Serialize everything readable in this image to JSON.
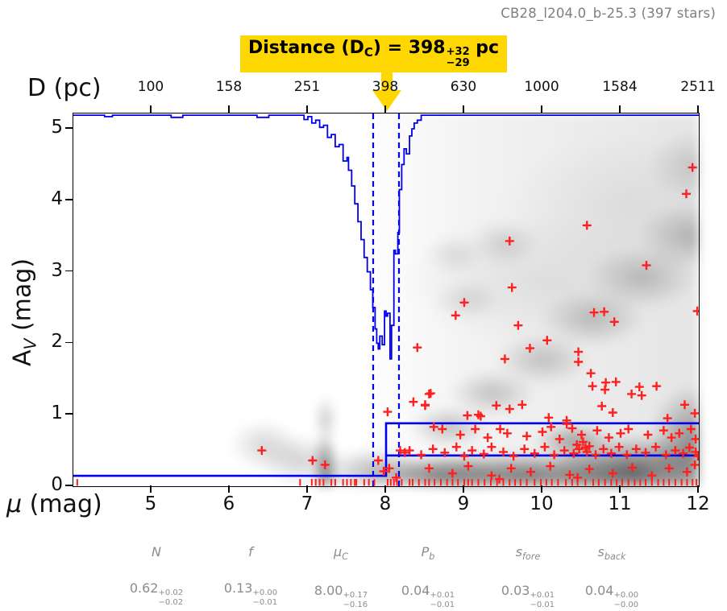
{
  "window": {
    "title": "CB28_l204.0_b-25.3 (397 stars)"
  },
  "annotation": {
    "prefix": "Distance (D",
    "sub": "C",
    "mid": ") = ",
    "value": "398",
    "err_plus": "+32",
    "err_minus": "−29",
    "suffix": " pc",
    "bg_color": "#ffd700"
  },
  "axes": {
    "top": {
      "label": "D (pc)"
    },
    "bottom": {
      "symbol": "μ",
      "rest": " (mag)"
    },
    "left": {
      "base": "A",
      "sub": "V",
      "rest": " (mag)"
    }
  },
  "chart_data": {
    "type": "scatter",
    "title": "CB28_l204.0_b-25.3 (397 stars)",
    "xlabel": "μ (mag)",
    "ylabel": "A_V (mag)",
    "top_xlabel": "D (pc)",
    "xlim": [
      4,
      12
    ],
    "ylim": [
      0,
      5.214
    ],
    "x_ticks": [
      5,
      6,
      7,
      8,
      9,
      10,
      11,
      12
    ],
    "y_ticks": [
      0,
      1,
      2,
      3,
      4,
      5
    ],
    "top_ticks": {
      "labels": [
        "100",
        "158",
        "251",
        "398",
        "630",
        "1000",
        "1584",
        "2511"
      ],
      "mu": [
        5,
        6,
        7,
        8,
        9,
        10,
        11,
        12
      ]
    },
    "distance_pc": {
      "value": 398,
      "plus": 32,
      "minus": 29
    },
    "mu_c": 8.0,
    "mu_lo": 7.835,
    "mu_hi": 8.165,
    "extinction_profile": {
      "foreground_av": 0.146,
      "jump_mu": 8.0,
      "back_upper_av": 0.88,
      "back_mid_av": 0.43
    },
    "distance_pdf": [
      [
        4.0,
        5.19
      ],
      [
        4.4,
        5.17
      ],
      [
        4.5,
        5.19
      ],
      [
        5.2,
        5.19
      ],
      [
        5.25,
        5.16
      ],
      [
        5.4,
        5.19
      ],
      [
        6.3,
        5.19
      ],
      [
        6.35,
        5.16
      ],
      [
        6.5,
        5.19
      ],
      [
        6.9,
        5.19
      ],
      [
        6.95,
        5.13
      ],
      [
        7.0,
        5.17
      ],
      [
        7.05,
        5.08
      ],
      [
        7.1,
        5.12
      ],
      [
        7.15,
        5.02
      ],
      [
        7.2,
        5.05
      ],
      [
        7.25,
        4.88
      ],
      [
        7.3,
        4.92
      ],
      [
        7.35,
        4.75
      ],
      [
        7.4,
        4.78
      ],
      [
        7.45,
        4.55
      ],
      [
        7.5,
        4.6
      ],
      [
        7.52,
        4.42
      ],
      [
        7.56,
        4.2
      ],
      [
        7.6,
        3.95
      ],
      [
        7.64,
        3.7
      ],
      [
        7.68,
        3.45
      ],
      [
        7.72,
        3.2
      ],
      [
        7.76,
        3.0
      ],
      [
        7.8,
        2.75
      ],
      [
        7.83,
        2.5
      ],
      [
        7.86,
        2.2
      ],
      [
        7.88,
        2.0
      ],
      [
        7.9,
        1.92
      ],
      [
        7.92,
        2.1
      ],
      [
        7.95,
        1.98
      ],
      [
        7.98,
        2.45
      ],
      [
        8.0,
        2.38
      ],
      [
        8.02,
        2.42
      ],
      [
        8.05,
        1.78
      ],
      [
        8.07,
        2.25
      ],
      [
        8.1,
        3.3
      ],
      [
        8.12,
        3.25
      ],
      [
        8.15,
        3.55
      ],
      [
        8.17,
        4.15
      ],
      [
        8.2,
        4.5
      ],
      [
        8.23,
        4.72
      ],
      [
        8.26,
        4.65
      ],
      [
        8.3,
        4.9
      ],
      [
        8.33,
        5.0
      ],
      [
        8.36,
        5.08
      ],
      [
        8.4,
        5.12
      ],
      [
        8.45,
        5.19
      ],
      [
        12.0,
        5.19
      ]
    ],
    "stars_scatter": [
      [
        6.41,
        0.5
      ],
      [
        7.06,
        0.36
      ],
      [
        7.22,
        0.3
      ],
      [
        7.9,
        0.36
      ],
      [
        7.97,
        0.21
      ],
      [
        8.02,
        1.04
      ],
      [
        8.04,
        0.25
      ],
      [
        8.13,
        0.12
      ],
      [
        8.18,
        0.5
      ],
      [
        8.24,
        0.47
      ],
      [
        8.4,
        1.94
      ],
      [
        8.5,
        1.14
      ],
      [
        8.57,
        1.3
      ],
      [
        8.89,
        2.39
      ],
      [
        9.0,
        2.57
      ],
      [
        9.52,
        1.78
      ],
      [
        9.58,
        3.43
      ],
      [
        9.61,
        2.78
      ],
      [
        9.69,
        2.25
      ],
      [
        9.84,
        1.93
      ],
      [
        10.06,
        2.04
      ],
      [
        10.46,
        1.88
      ],
      [
        10.46,
        1.74
      ],
      [
        10.57,
        3.65
      ],
      [
        10.66,
        2.43
      ],
      [
        10.79,
        2.44
      ],
      [
        10.92,
        2.3
      ],
      [
        11.33,
        3.09
      ],
      [
        11.84,
        4.09
      ],
      [
        11.92,
        4.46
      ],
      [
        11.98,
        2.45
      ],
      [
        8.35,
        1.18
      ],
      [
        10.62,
        1.58
      ],
      [
        10.64,
        1.4
      ],
      [
        10.81,
        1.45
      ],
      [
        10.94,
        1.46
      ],
      [
        10.8,
        1.35
      ],
      [
        11.24,
        1.39
      ],
      [
        11.46,
        1.4
      ],
      [
        11.27,
        1.27
      ],
      [
        11.14,
        1.29
      ],
      [
        11.82,
        1.14
      ],
      [
        8.55,
        1.29
      ],
      [
        8.5,
        1.13
      ],
      [
        9.04,
        0.99
      ],
      [
        9.18,
        1.0
      ],
      [
        9.21,
        0.98
      ],
      [
        9.41,
        1.13
      ],
      [
        9.58,
        1.08
      ],
      [
        9.74,
        1.14
      ],
      [
        10.08,
        0.96
      ],
      [
        10.31,
        0.92
      ],
      [
        10.76,
        1.12
      ],
      [
        10.9,
        1.03
      ],
      [
        11.6,
        0.95
      ],
      [
        11.95,
        1.02
      ],
      [
        8.61,
        0.83
      ],
      [
        8.72,
        0.8
      ],
      [
        8.95,
        0.72
      ],
      [
        9.14,
        0.8
      ],
      [
        9.3,
        0.68
      ],
      [
        9.46,
        0.8
      ],
      [
        9.55,
        0.74
      ],
      [
        9.8,
        0.7
      ],
      [
        10.0,
        0.76
      ],
      [
        10.11,
        0.83
      ],
      [
        10.22,
        0.66
      ],
      [
        10.31,
        0.87
      ],
      [
        10.38,
        0.81
      ],
      [
        10.5,
        0.72
      ],
      [
        10.7,
        0.78
      ],
      [
        10.85,
        0.68
      ],
      [
        11.0,
        0.74
      ],
      [
        11.1,
        0.8
      ],
      [
        11.35,
        0.72
      ],
      [
        11.55,
        0.78
      ],
      [
        11.65,
        0.68
      ],
      [
        11.75,
        0.74
      ],
      [
        11.9,
        0.8
      ],
      [
        11.96,
        0.66
      ],
      [
        8.3,
        0.5
      ],
      [
        8.45,
        0.44
      ],
      [
        8.6,
        0.52
      ],
      [
        8.75,
        0.47
      ],
      [
        8.9,
        0.55
      ],
      [
        9.0,
        0.42
      ],
      [
        9.1,
        0.5
      ],
      [
        9.25,
        0.45
      ],
      [
        9.35,
        0.55
      ],
      [
        9.5,
        0.48
      ],
      [
        9.63,
        0.42
      ],
      [
        9.77,
        0.52
      ],
      [
        9.9,
        0.46
      ],
      [
        10.03,
        0.55
      ],
      [
        10.15,
        0.44
      ],
      [
        10.28,
        0.5
      ],
      [
        10.4,
        0.46
      ],
      [
        10.55,
        0.54
      ],
      [
        10.68,
        0.44
      ],
      [
        10.78,
        0.52
      ],
      [
        10.88,
        0.46
      ],
      [
        10.98,
        0.55
      ],
      [
        11.08,
        0.44
      ],
      [
        11.2,
        0.52
      ],
      [
        11.32,
        0.47
      ],
      [
        11.45,
        0.55
      ],
      [
        11.58,
        0.44
      ],
      [
        11.7,
        0.5
      ],
      [
        11.8,
        0.46
      ],
      [
        11.88,
        0.54
      ],
      [
        11.96,
        0.48
      ],
      [
        10.44,
        0.58
      ],
      [
        10.52,
        0.62
      ],
      [
        10.6,
        0.56
      ],
      [
        10.47,
        0.52
      ],
      [
        10.57,
        0.48
      ],
      [
        8.55,
        0.25
      ],
      [
        8.85,
        0.18
      ],
      [
        9.05,
        0.28
      ],
      [
        9.35,
        0.15
      ],
      [
        9.6,
        0.25
      ],
      [
        9.85,
        0.2
      ],
      [
        10.1,
        0.28
      ],
      [
        10.35,
        0.16
      ],
      [
        10.6,
        0.24
      ],
      [
        10.9,
        0.18
      ],
      [
        11.15,
        0.26
      ],
      [
        11.4,
        0.15
      ],
      [
        11.62,
        0.25
      ],
      [
        11.85,
        0.2
      ],
      [
        11.95,
        0.3
      ],
      [
        9.45,
        0.1
      ],
      [
        10.45,
        0.12
      ],
      [
        11.99,
        0.42
      ]
    ],
    "rug_mu": [
      4.05,
      6.9,
      7.05,
      7.1,
      7.15,
      7.2,
      7.3,
      7.35,
      7.45,
      7.5,
      7.55,
      7.6,
      7.62,
      7.72,
      7.78,
      7.85,
      8.02,
      8.06,
      8.1,
      8.14,
      8.2,
      8.3,
      8.34,
      8.42,
      8.5,
      8.55,
      8.62,
      8.7,
      8.78,
      8.85,
      8.92,
      9.0,
      9.05,
      9.1,
      9.18,
      9.26,
      9.34,
      9.42,
      9.5,
      9.58,
      9.65,
      9.72,
      9.8,
      9.9,
      9.98,
      10.05,
      10.12,
      10.2,
      10.3,
      10.38,
      10.45,
      10.55,
      10.65,
      10.72,
      10.8,
      10.88,
      10.95,
      11.02,
      11.1,
      11.18,
      11.25,
      11.32,
      11.4,
      11.48,
      11.55,
      11.62,
      11.7,
      11.78,
      11.85,
      11.92,
      11.97
    ],
    "legend": "none",
    "grid": false
  },
  "parameters": [
    {
      "name": "N",
      "sub": "",
      "value": "0.62",
      "plus": "+0.02",
      "minus": "−0.02"
    },
    {
      "name": "f",
      "sub": "",
      "value": "0.13",
      "plus": "+0.00",
      "minus": "−0.01"
    },
    {
      "name": "μ",
      "sub": "C",
      "value": "8.00",
      "plus": "+0.17",
      "minus": "−0.16"
    },
    {
      "name": "P",
      "sub": "b",
      "value": "0.04",
      "plus": "+0.01",
      "minus": "−0.01"
    },
    {
      "name": "s",
      "sub": "fore",
      "value": "0.03",
      "plus": "+0.01",
      "minus": "−0.01"
    },
    {
      "name": "s",
      "sub": "back",
      "value": "0.04",
      "plus": "+0.00",
      "minus": "−0.00"
    }
  ],
  "colors": {
    "curve_blue": "#0000ee",
    "marker_red": "#ff1f1f",
    "annotation_yellow": "#ffd700",
    "title_gray": "#7f7f7f",
    "stats_gray": "#8c8c8c"
  }
}
